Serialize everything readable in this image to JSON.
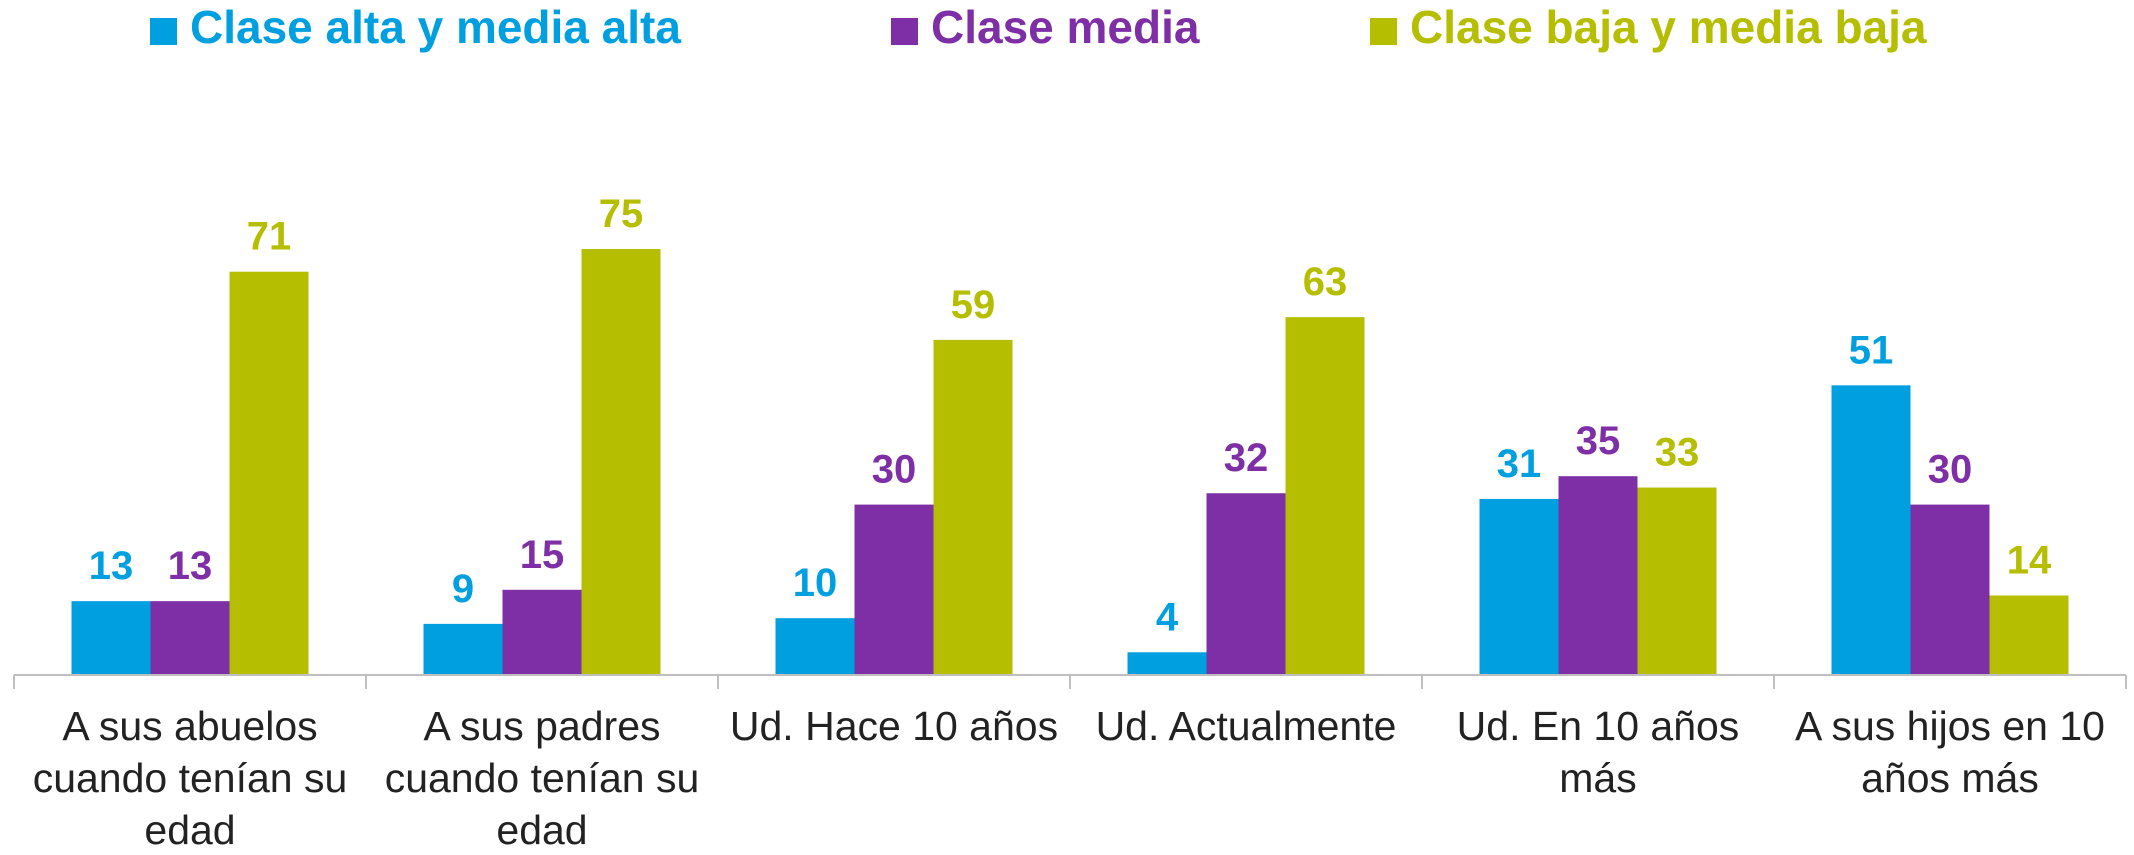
{
  "chart_data": {
    "type": "bar",
    "categories": [
      "A sus abuelos cuando tenían su edad",
      "A sus padres cuando tenían su edad",
      "Ud. Hace 10 años",
      "Ud. Actualmente",
      "Ud. En 10 años más",
      "A sus hijos en 10 años más"
    ],
    "series": [
      {
        "name": "Clase alta y media alta",
        "color": "#009fe0",
        "values": [
          13,
          9,
          10,
          4,
          31,
          51
        ]
      },
      {
        "name": "Clase media",
        "color": "#7f2fa6",
        "values": [
          13,
          15,
          30,
          32,
          35,
          30
        ]
      },
      {
        "name": "Clase baja y media baja",
        "color": "#b5be00",
        "values": [
          71,
          75,
          59,
          63,
          33,
          14
        ]
      }
    ],
    "ylim": [
      0,
      100
    ]
  }
}
